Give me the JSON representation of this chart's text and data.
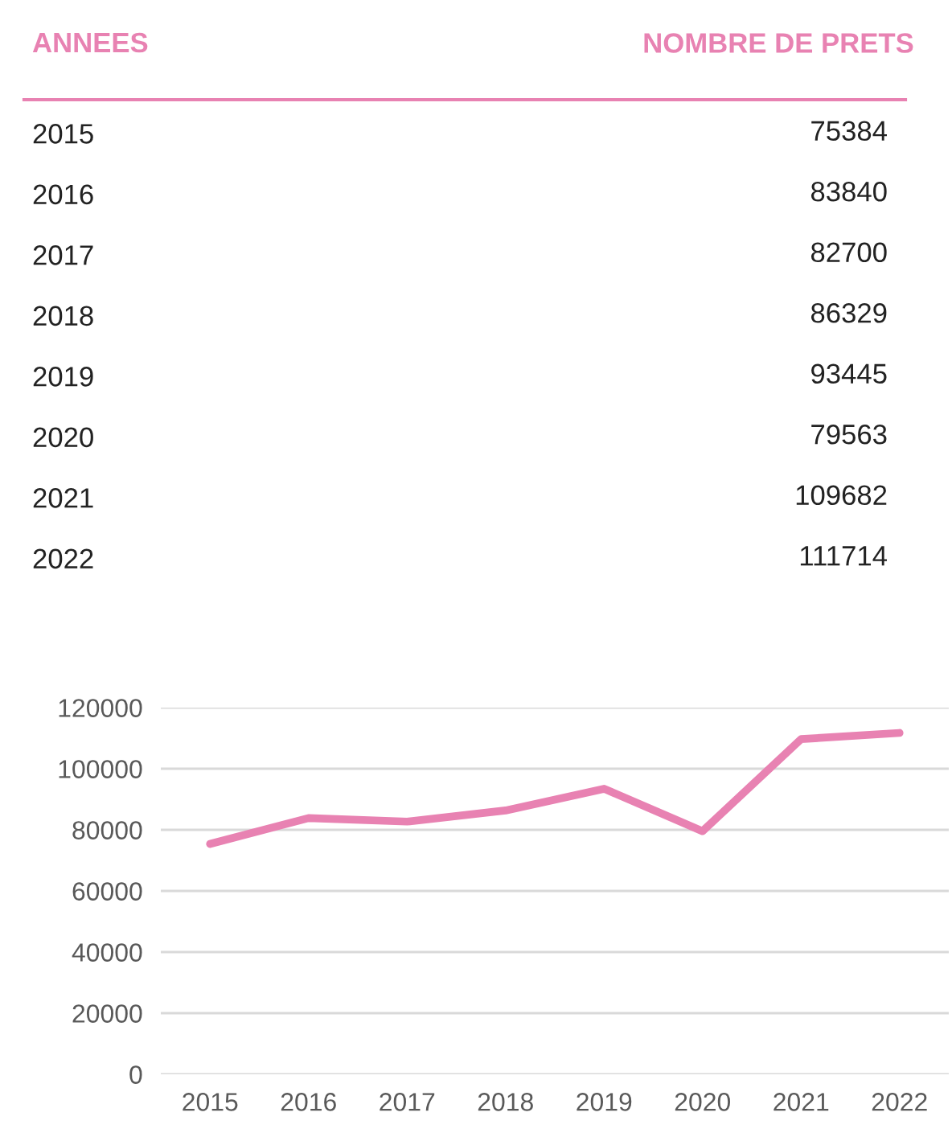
{
  "chart_data": [
    {
      "type": "heatmap",
      "ylabel": "ANNEES",
      "categories": [
        "NOMBRE DE PRETS"
      ],
      "y_categories": [
        "2015",
        "2016",
        "2017",
        "2018",
        "2019",
        "2020",
        "2021",
        "2022"
      ],
      "cells": [
        [
          75384
        ],
        [
          83840
        ],
        [
          82700
        ],
        [
          86329
        ],
        [
          93445
        ],
        [
          79563
        ],
        [
          109682
        ],
        [
          111714
        ]
      ],
      "data_labels": true
    },
    {
      "type": "line",
      "categories": [
        "2015",
        "2016",
        "2017",
        "2018",
        "2019",
        "2020",
        "2021",
        "2022"
      ],
      "series": [
        {
          "color": "#e882b2",
          "values": [
            75384,
            83840,
            82700,
            86329,
            93445,
            79563,
            109682,
            111714
          ]
        }
      ],
      "ylim": [
        0,
        120000
      ],
      "yticks": [
        0,
        20000,
        40000,
        60000,
        80000,
        100000,
        120000
      ],
      "grid": "y",
      "marker": "none",
      "line_style": "solid"
    }
  ]
}
